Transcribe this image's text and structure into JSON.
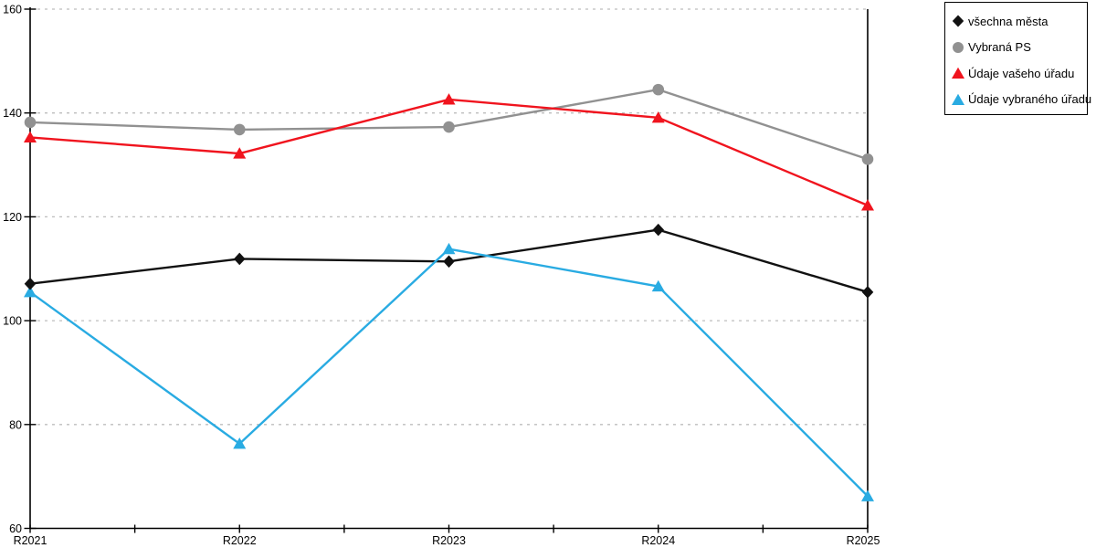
{
  "chart_data": {
    "type": "line",
    "title": "",
    "xlabel": "",
    "ylabel": "",
    "categories": [
      "R2021",
      "R2022",
      "R2023",
      "R2024",
      "R2025"
    ],
    "series": [
      {
        "name": "všechna města",
        "marker": "diamond",
        "color": "#111111",
        "values": [
          107.1,
          111.9,
          111.4,
          117.5,
          105.5
        ]
      },
      {
        "name": "Vybraná PS",
        "marker": "circle",
        "color": "#919191",
        "values": [
          138.2,
          136.8,
          137.3,
          144.5,
          131.1
        ]
      },
      {
        "name": "Údaje vašeho úřadu",
        "marker": "triangle",
        "color": "#f0141e",
        "values": [
          135.3,
          132.2,
          142.6,
          139.1,
          122.2
        ]
      },
      {
        "name": "Údaje vybraného úřadu",
        "marker": "triangle",
        "color": "#29abe2",
        "values": [
          105.5,
          76.3,
          113.8,
          106.6,
          66.2
        ]
      }
    ],
    "ylim": [
      60,
      160
    ],
    "ytick_step": 20,
    "y_tick_labels": [
      "60",
      "80",
      "100",
      "120",
      "140",
      "160"
    ],
    "grid": "horizontal-dotted",
    "gridline_color": "#bdbdbd",
    "axis_color": "#000000",
    "legend_position": "top-right"
  }
}
